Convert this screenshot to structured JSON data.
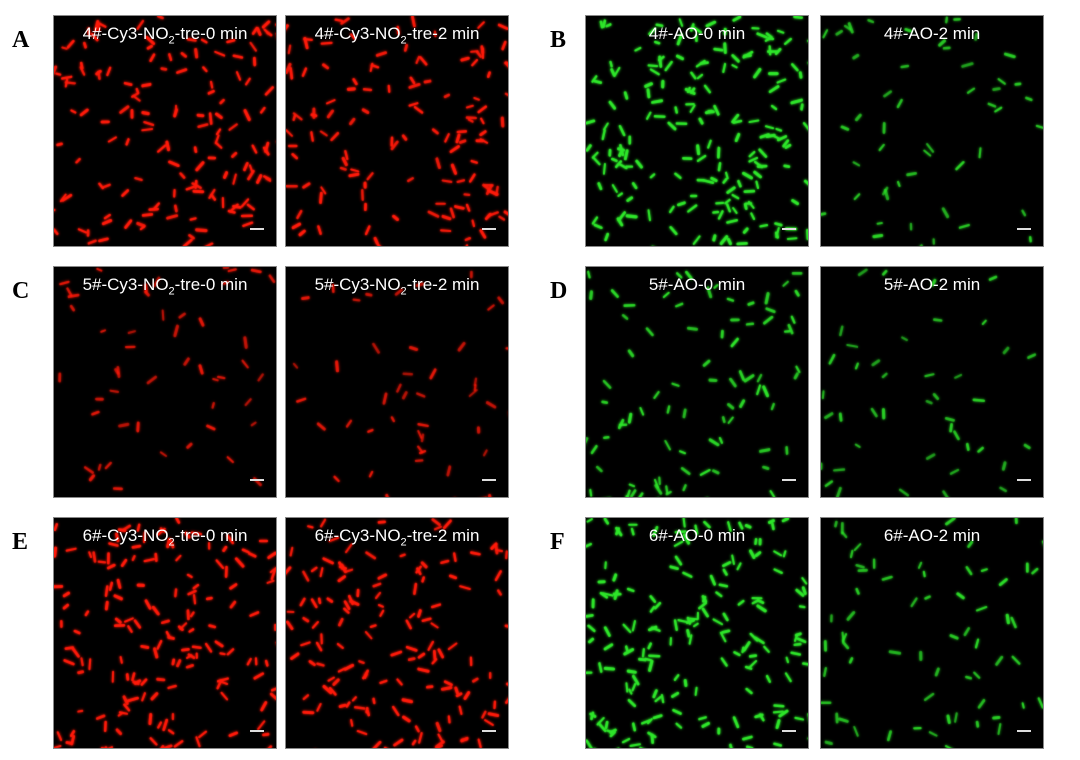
{
  "panels": [
    {
      "letter": "A",
      "images": [
        {
          "prefix": "4#-Cy3-NO",
          "sub": "2",
          "suffix": "-tre-0 min",
          "channel": "red",
          "density": 1.0
        },
        {
          "prefix": "4#-Cy3-NO",
          "sub": "2",
          "suffix": "-tre-2 min",
          "channel": "red",
          "density": 0.9
        }
      ]
    },
    {
      "letter": "B",
      "images": [
        {
          "prefix": "4#-AO-0 min",
          "sub": "",
          "suffix": "",
          "channel": "green",
          "density": 1.3
        },
        {
          "prefix": "4#-AO-2 min",
          "sub": "",
          "suffix": "",
          "channel": "green",
          "density": 0.35
        }
      ]
    },
    {
      "letter": "C",
      "images": [
        {
          "prefix": "5#-Cy3-NO",
          "sub": "2",
          "suffix": "-tre-0 min",
          "channel": "red",
          "density": 0.35
        },
        {
          "prefix": "5#-Cy3-NO",
          "sub": "2",
          "suffix": "-tre-2 min",
          "channel": "red",
          "density": 0.33
        }
      ]
    },
    {
      "letter": "D",
      "images": [
        {
          "prefix": "5#-AO-0 min",
          "sub": "",
          "suffix": "",
          "channel": "green",
          "density": 0.6
        },
        {
          "prefix": "5#-AO-2 min",
          "sub": "",
          "suffix": "",
          "channel": "green",
          "density": 0.3
        }
      ]
    },
    {
      "letter": "E",
      "images": [
        {
          "prefix": "6#-Cy3-NO",
          "sub": "2",
          "suffix": "-tre-0 min",
          "channel": "red",
          "density": 1.1
        },
        {
          "prefix": "6#-Cy3-NO",
          "sub": "2",
          "suffix": "-tre-2 min",
          "channel": "red",
          "density": 1.0
        }
      ]
    },
    {
      "letter": "F",
      "images": [
        {
          "prefix": "6#-AO-0 min",
          "sub": "",
          "suffix": "",
          "channel": "green",
          "density": 1.2
        },
        {
          "prefix": "6#-AO-2 min",
          "sub": "",
          "suffix": "",
          "channel": "green",
          "density": 0.45
        }
      ]
    }
  ],
  "colors": {
    "red": "#ff1a0a",
    "green": "#2ee62a"
  }
}
